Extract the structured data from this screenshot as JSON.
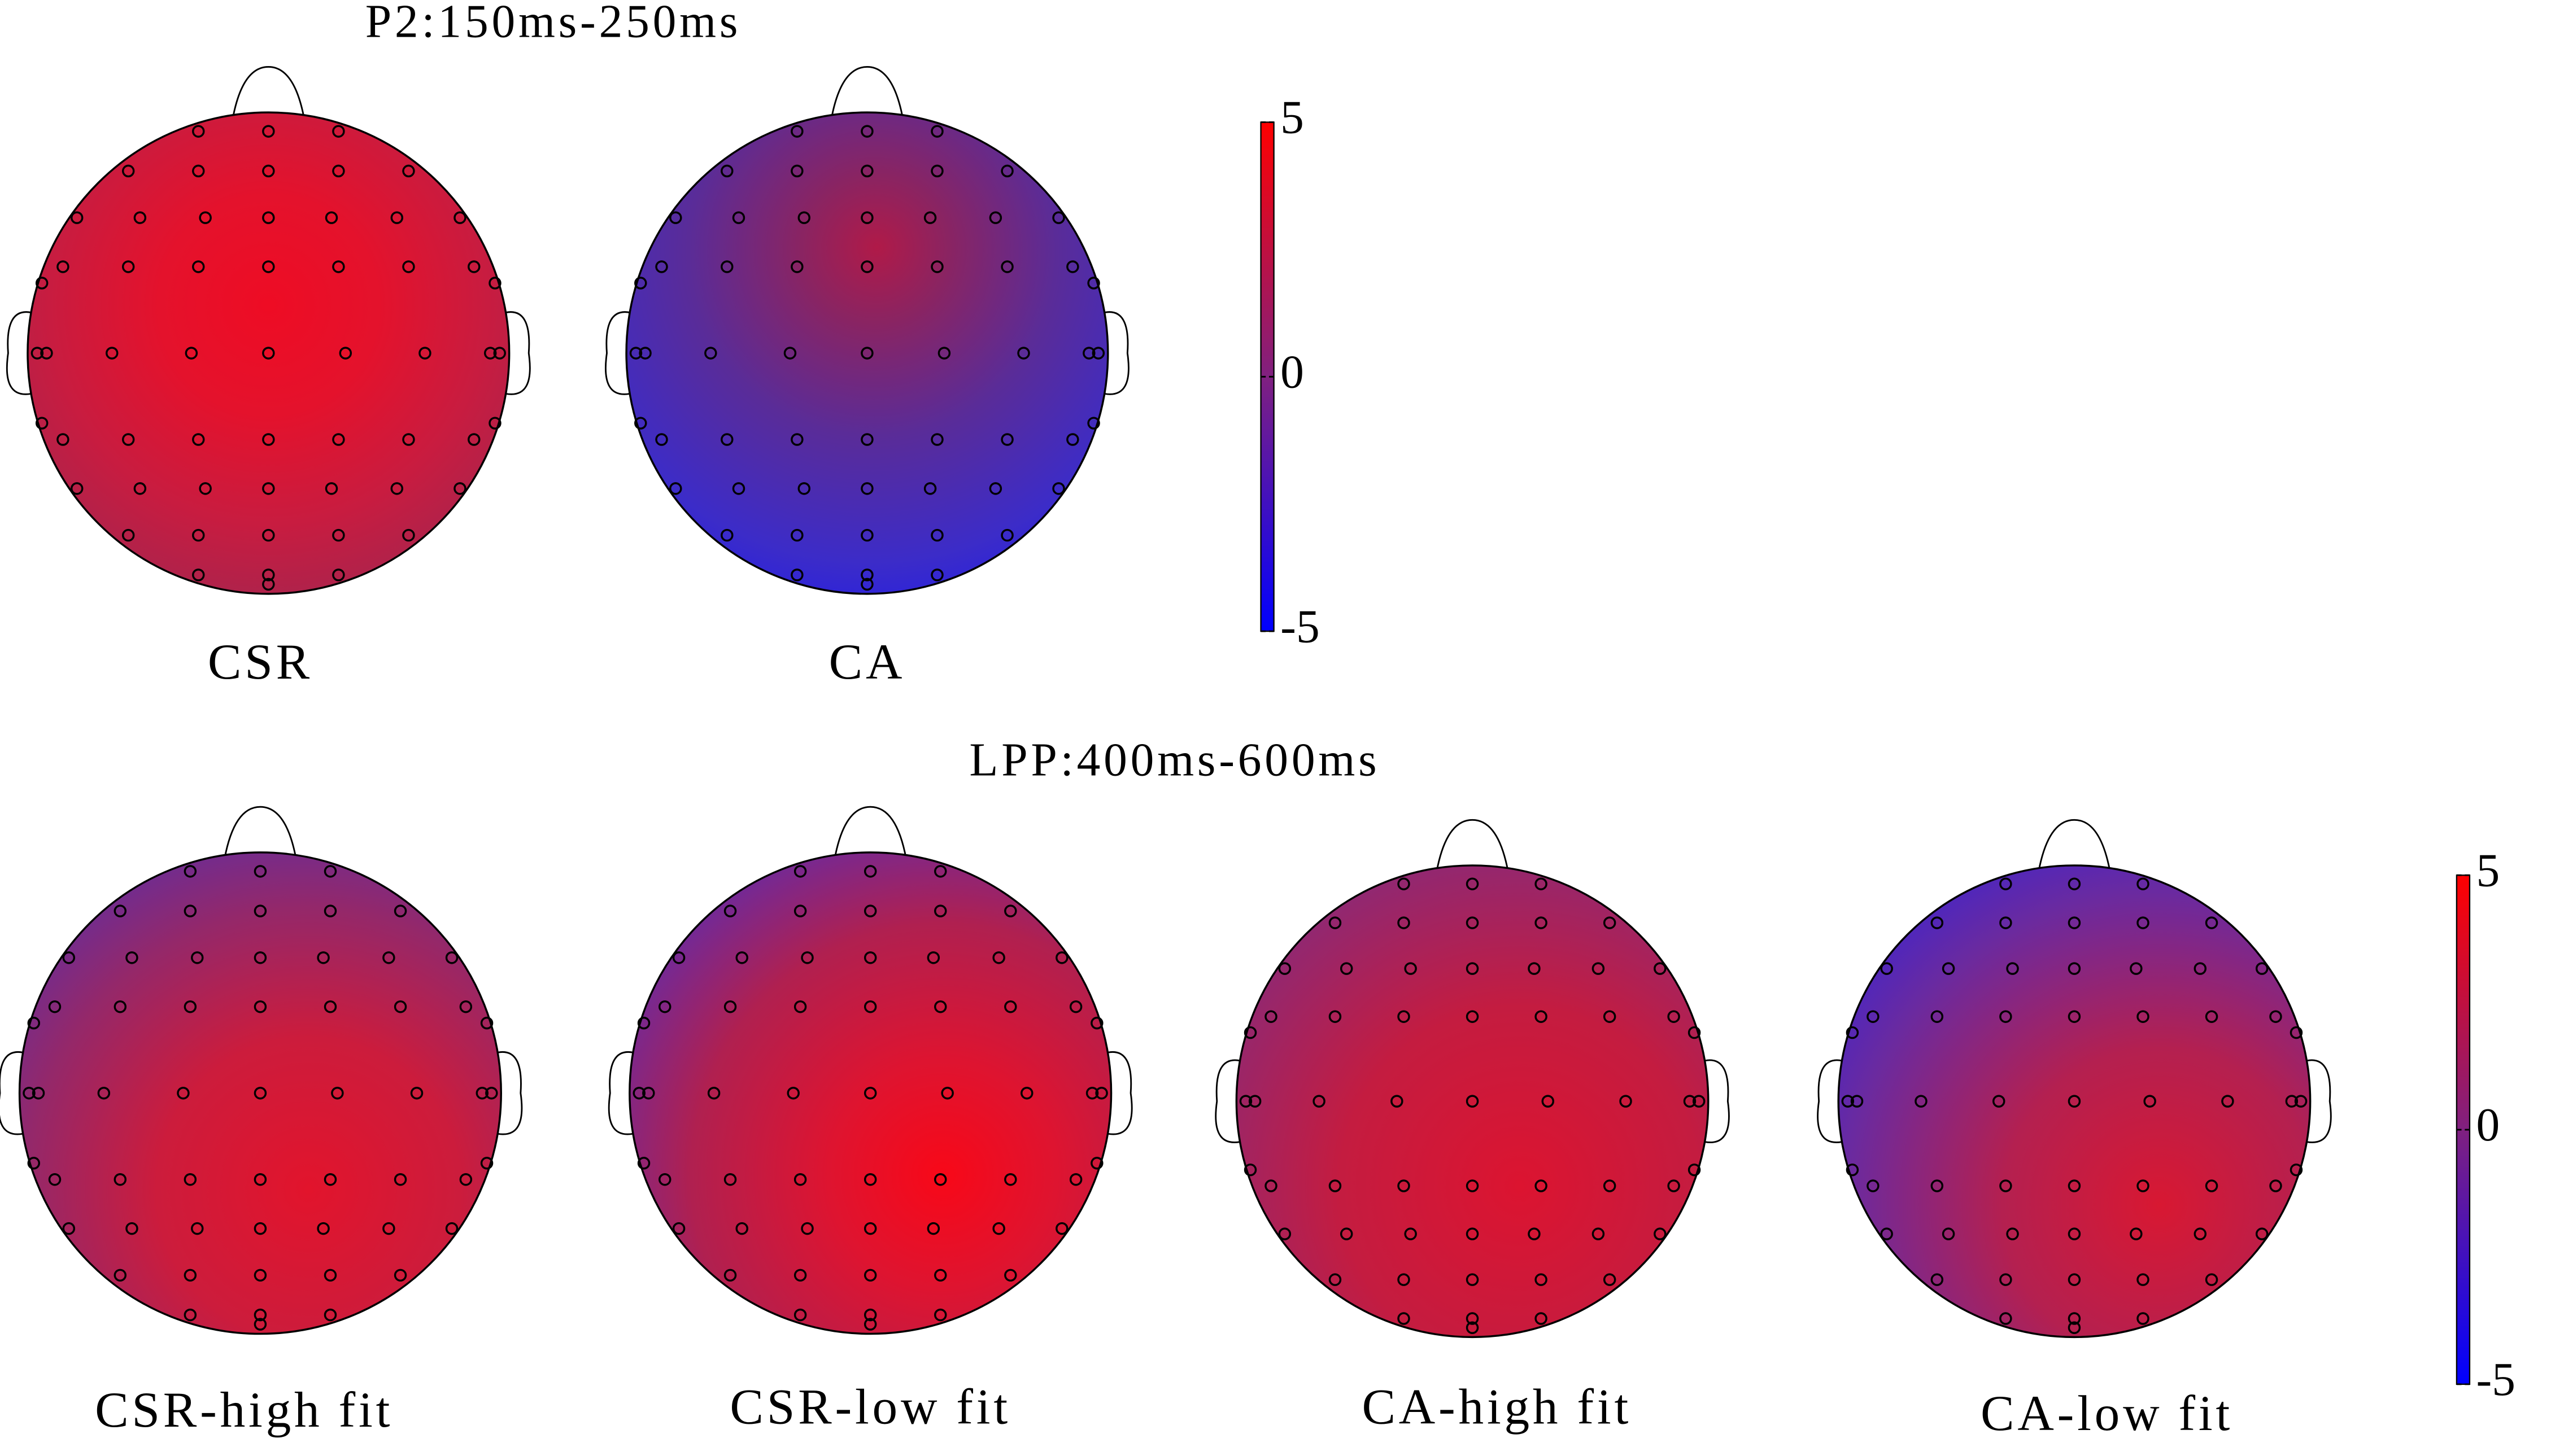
{
  "panels": [
    {
      "title": "P2:150ms-250ms",
      "maps": [
        {
          "label": "CSR"
        },
        {
          "label": "CA"
        }
      ],
      "colorbar": {
        "range": [
          -5,
          5
        ],
        "ticks": [
          5,
          0,
          -5
        ]
      }
    },
    {
      "title": "LPP:400ms-600ms",
      "maps": [
        {
          "label": "CSR-high fit"
        },
        {
          "label": "CSR-low fit"
        },
        {
          "label": "CA-high fit"
        },
        {
          "label": "CA-low fit"
        }
      ],
      "colorbar": {
        "range": [
          -5,
          5
        ],
        "ticks": [
          5,
          0,
          -5
        ]
      }
    }
  ]
}
